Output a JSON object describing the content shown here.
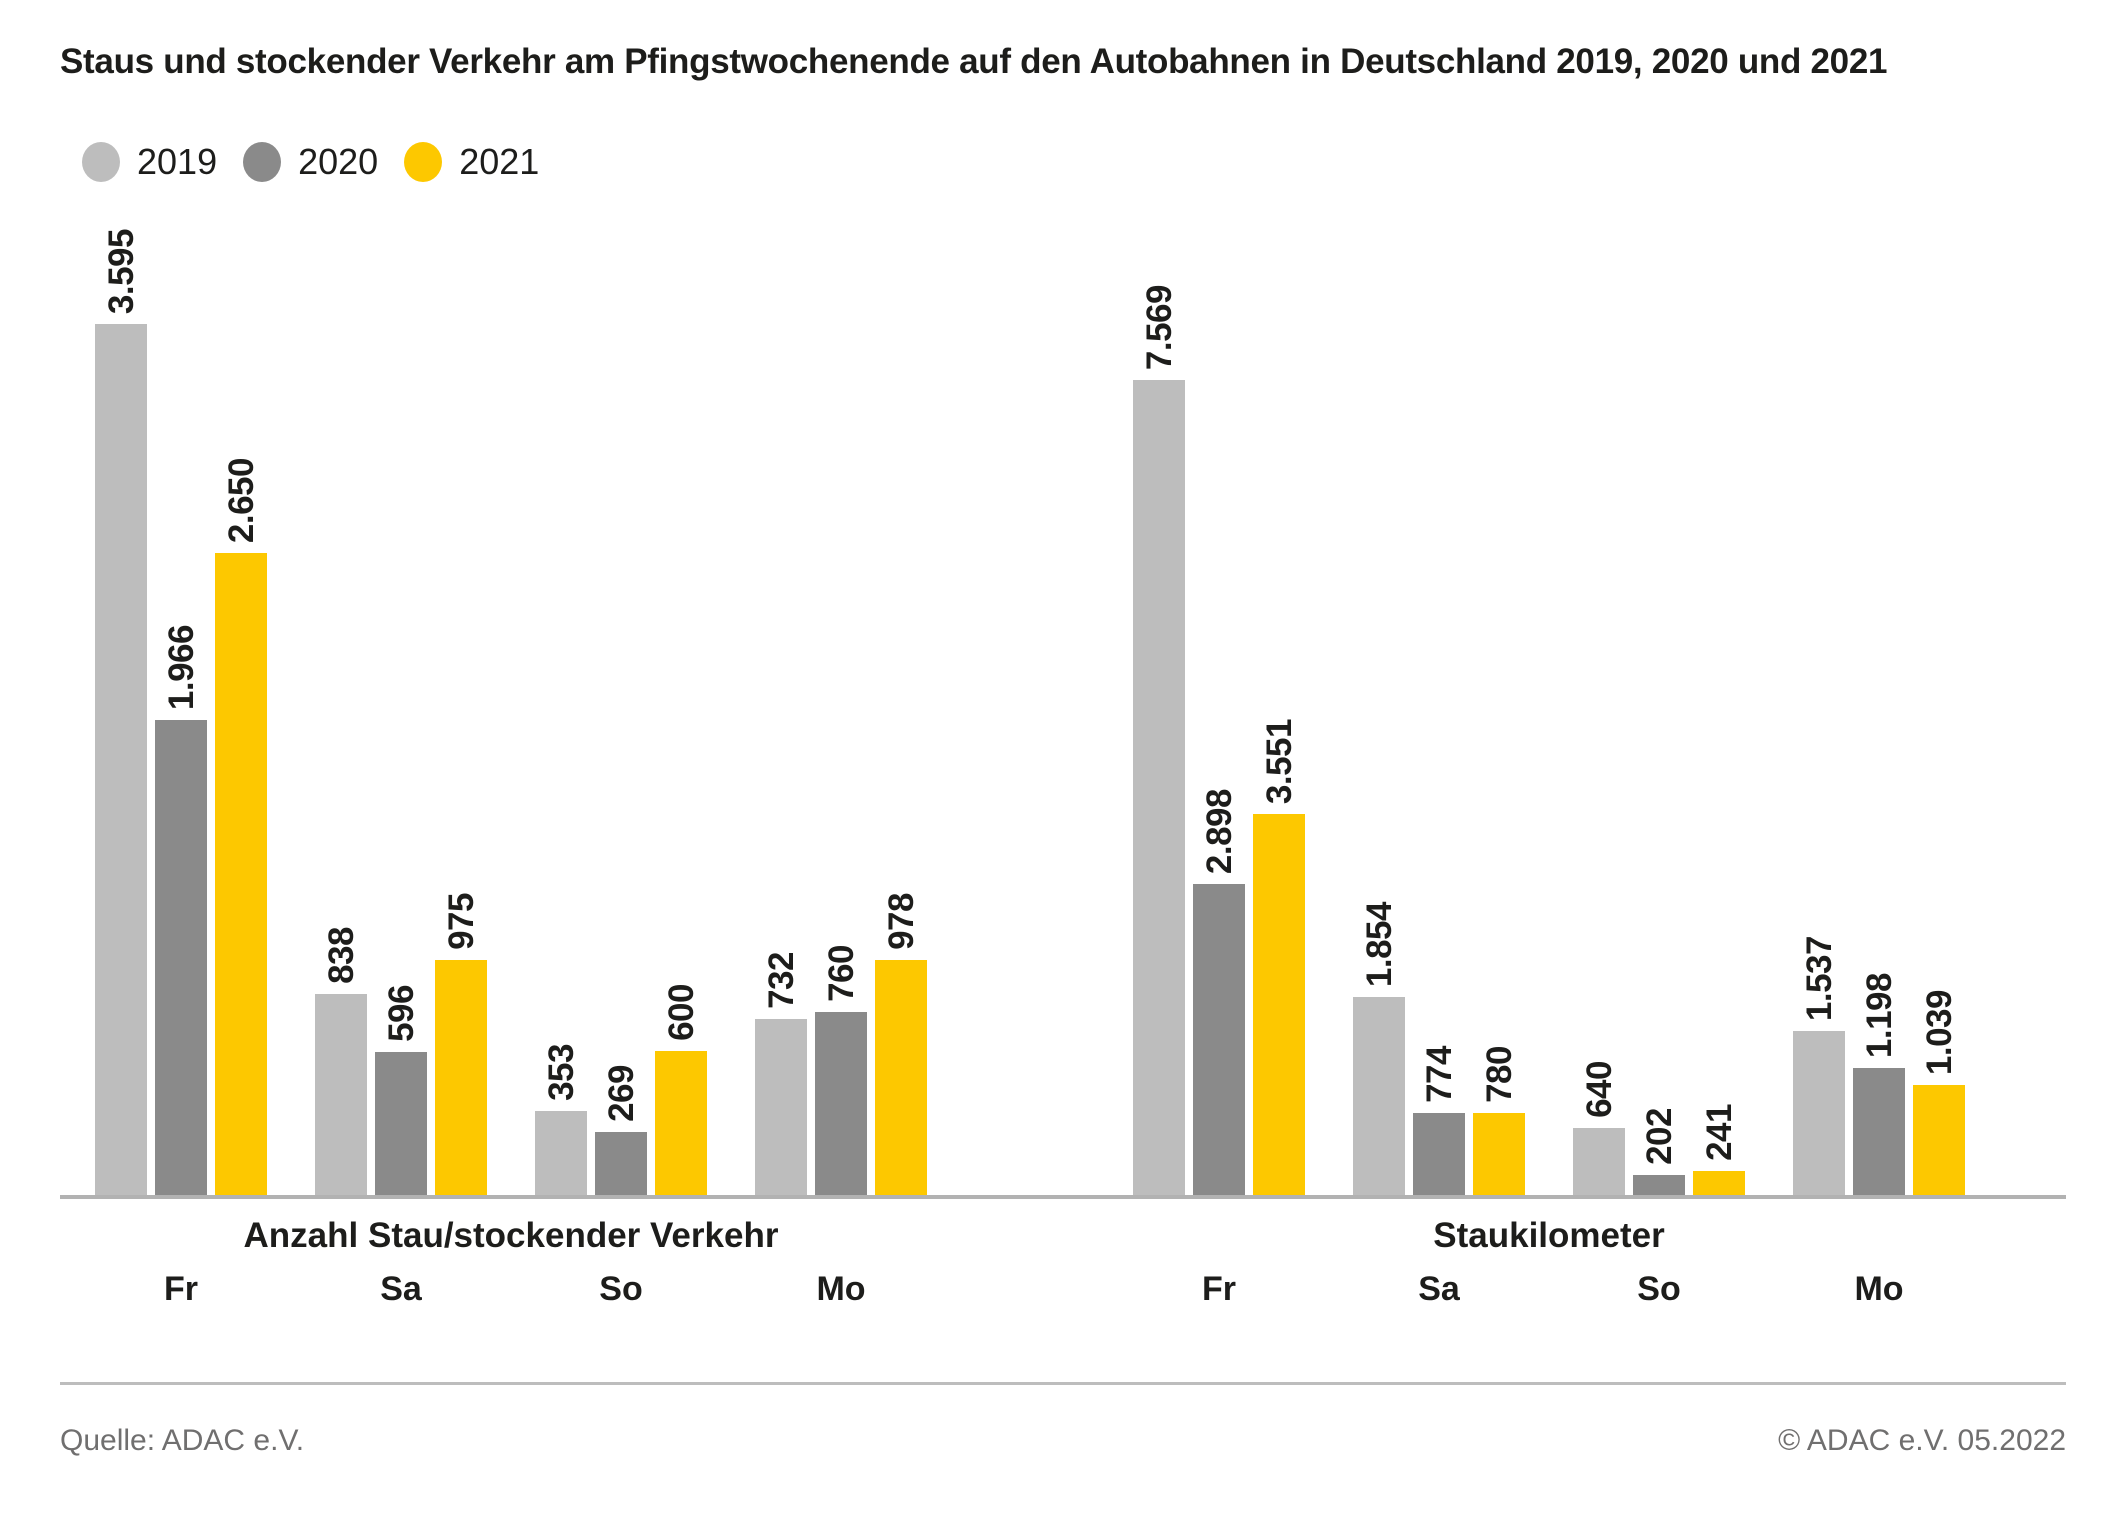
{
  "title": "Staus und stockender Verkehr am Pfingstwochenende auf den Autobahnen in Deutschland 2019, 2020 und 2021",
  "legend": [
    {
      "label": "2019",
      "color": "#bdbdbd"
    },
    {
      "label": "2020",
      "color": "#8a8a8a"
    },
    {
      "label": "2021",
      "color": "#fdc800"
    }
  ],
  "chart_data": [
    {
      "type": "bar",
      "title": "Anzahl Stau/stockender Verkehr",
      "categories": [
        "Fr",
        "Sa",
        "So",
        "Mo"
      ],
      "series": [
        {
          "name": "2019",
          "color": "#bdbdbd",
          "values": [
            3595,
            838,
            353,
            732
          ],
          "labels": [
            "3.595",
            "838",
            "353",
            "732"
          ]
        },
        {
          "name": "2020",
          "color": "#8a8a8a",
          "values": [
            1966,
            596,
            269,
            760
          ],
          "labels": [
            "1.966",
            "596",
            "269",
            "760"
          ]
        },
        {
          "name": "2021",
          "color": "#fdc800",
          "values": [
            2650,
            975,
            600,
            978
          ],
          "labels": [
            "2.650",
            "975",
            "600",
            "978"
          ]
        }
      ],
      "ylim": [
        0,
        3600
      ],
      "grid": false,
      "value_labels": true,
      "value_label_rotation": 90,
      "legend_position": "top-left"
    },
    {
      "type": "bar",
      "title": "Staukilometer",
      "categories": [
        "Fr",
        "Sa",
        "So",
        "Mo"
      ],
      "series": [
        {
          "name": "2019",
          "color": "#bdbdbd",
          "values": [
            7569,
            1854,
            640,
            1537
          ],
          "labels": [
            "7.569",
            "1.854",
            "640",
            "1.537"
          ]
        },
        {
          "name": "2020",
          "color": "#8a8a8a",
          "values": [
            2898,
            774,
            202,
            1198
          ],
          "labels": [
            "2.898",
            "774",
            "202",
            "1.198"
          ]
        },
        {
          "name": "2021",
          "color": "#fdc800",
          "values": [
            3551,
            780,
            241,
            1039
          ],
          "labels": [
            "3.551",
            "780",
            "241",
            "1.039"
          ]
        }
      ],
      "ylim": [
        0,
        7600
      ],
      "grid": false,
      "value_labels": true,
      "value_label_rotation": 90,
      "legend_position": "top-left"
    }
  ],
  "footer": {
    "source": "Quelle: ADAC e.V.",
    "copyright": "© ADAC e.V. 05.2022"
  },
  "colors": {
    "bar_2019": "#bdbdbd",
    "bar_2020": "#8a8a8a",
    "bar_2021": "#fdc800",
    "text_dark": "#1d1d1b",
    "text_gray": "#706f6f",
    "axis_line": "#b2b2b2"
  }
}
